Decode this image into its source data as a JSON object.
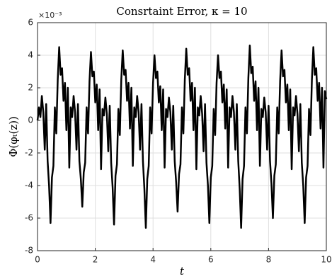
{
  "chart_data": {
    "type": "line",
    "title": "Consrtaint Error, κ = 10",
    "xlabel": "t",
    "ylabel": "Φ(φₜ(z))",
    "y_multiplier": "×10⁻³",
    "color": "#000000",
    "grid": true,
    "xlim": [
      0,
      10
    ],
    "xticks": [
      0,
      2,
      4,
      6,
      8,
      10
    ],
    "ylim": [
      -8,
      6
    ],
    "yticks": [
      -8,
      -6,
      -4,
      -2,
      0,
      2,
      4,
      6
    ],
    "x": [
      0,
      0.05,
      0.1,
      0.15,
      0.2,
      0.25,
      0.3,
      0.35,
      0.4,
      0.45,
      0.5,
      0.55,
      0.6,
      0.65,
      0.7,
      0.75,
      0.8,
      0.85,
      0.9,
      0.95,
      1,
      1.05,
      1.1,
      1.15,
      1.2,
      1.25,
      1.3,
      1.35,
      1.4,
      1.45,
      1.5,
      1.55,
      1.6,
      1.65,
      1.7,
      1.75,
      1.8,
      1.85,
      1.9,
      1.95,
      2,
      2.05,
      2.1,
      2.15,
      2.2,
      2.25,
      2.3,
      2.35,
      2.4,
      2.45,
      2.5,
      2.55,
      2.6,
      2.65,
      2.7,
      2.75,
      2.8,
      2.85,
      2.9,
      2.95,
      3,
      3.05,
      3.1,
      3.15,
      3.2,
      3.25,
      3.3,
      3.35,
      3.4,
      3.45,
      3.5,
      3.55,
      3.6,
      3.65,
      3.7,
      3.75,
      3.8,
      3.85,
      3.9,
      3.95,
      4,
      4.05,
      4.1,
      4.15,
      4.2,
      4.25,
      4.3,
      4.35,
      4.4,
      4.45,
      4.5,
      4.55,
      4.6,
      4.65,
      4.7,
      4.75,
      4.8,
      4.85,
      4.9,
      4.95,
      5,
      5.05,
      5.1,
      5.15,
      5.2,
      5.25,
      5.3,
      5.35,
      5.4,
      5.45,
      5.5,
      5.55,
      5.6,
      5.65,
      5.7,
      5.75,
      5.8,
      5.85,
      5.9,
      5.95,
      6,
      6.05,
      6.1,
      6.15,
      6.2,
      6.25,
      6.3,
      6.35,
      6.4,
      6.45,
      6.5,
      6.55,
      6.6,
      6.65,
      6.7,
      6.75,
      6.8,
      6.85,
      6.9,
      6.95,
      7,
      7.05,
      7.1,
      7.15,
      7.2,
      7.25,
      7.3,
      7.35,
      7.4,
      7.45,
      7.5,
      7.55,
      7.6,
      7.65,
      7.7,
      7.75,
      7.8,
      7.85,
      7.9,
      7.95,
      8,
      8.05,
      8.1,
      8.15,
      8.2,
      8.25,
      8.3,
      8.35,
      8.4,
      8.45,
      8.5,
      8.55,
      8.6,
      8.65,
      8.7,
      8.75,
      8.8,
      8.85,
      8.9,
      8.95,
      9,
      9.05,
      9.1,
      9.15,
      9.2,
      9.25,
      9.3,
      9.35,
      9.4,
      9.45,
      9.5,
      9.55,
      9.6,
      9.65,
      9.7,
      9.75,
      9.8,
      9.85,
      9.9,
      9.95,
      10
    ],
    "values": [
      0,
      0.8,
      0.2,
      1.5,
      0.5,
      -1.8,
      1.0,
      -2.5,
      -4.0,
      -6.3,
      -3.5,
      -2.8,
      0.8,
      -0.8,
      2.5,
      4.5,
      2.8,
      3.2,
      1.2,
      2.3,
      -0.6,
      2.0,
      -2.9,
      0.8,
      0.2,
      1.5,
      0.5,
      -1.8,
      1.0,
      -2.5,
      -3.6,
      -5.3,
      -3.2,
      -2.6,
      0.8,
      -0.8,
      2.4,
      4.2,
      2.7,
      3.0,
      1.1,
      2.2,
      -0.6,
      1.9,
      -3.0,
      0.7,
      0.3,
      1.4,
      0.4,
      -1.9,
      0.9,
      -2.6,
      -4.1,
      -6.4,
      -3.4,
      -2.7,
      0.7,
      -0.9,
      2.5,
      4.3,
      2.8,
      3.1,
      1.2,
      2.3,
      -0.5,
      2.0,
      -2.8,
      0.8,
      0.2,
      1.5,
      0.5,
      -1.8,
      1.0,
      -2.5,
      -4.2,
      -6.6,
      -3.6,
      -2.8,
      0.8,
      -0.8,
      2.3,
      4.0,
      2.6,
      3.0,
      1.1,
      2.1,
      -0.6,
      1.9,
      -2.9,
      0.7,
      0.2,
      1.4,
      0.5,
      -1.8,
      0.9,
      -2.5,
      -3.8,
      -5.6,
      -3.3,
      -2.7,
      0.8,
      -0.8,
      2.5,
      4.4,
      2.8,
      3.2,
      1.2,
      2.3,
      -0.6,
      2.0,
      -3.0,
      0.8,
      0.3,
      1.5,
      0.4,
      -1.9,
      1.0,
      -2.6,
      -4.0,
      -6.3,
      -3.5,
      -2.8,
      0.7,
      -0.9,
      2.3,
      4.0,
      2.6,
      3.0,
      1.1,
      2.2,
      -0.5,
      1.9,
      -2.9,
      0.8,
      0.2,
      1.5,
      0.5,
      -1.8,
      1.0,
      -2.5,
      -4.2,
      -6.6,
      -3.6,
      -2.8,
      0.8,
      -0.8,
      2.6,
      4.6,
      2.9,
      3.3,
      1.2,
      2.4,
      -0.6,
      2.0,
      -2.8,
      0.7,
      0.2,
      1.4,
      0.5,
      -1.8,
      0.9,
      -2.5,
      -3.9,
      -6.0,
      -3.4,
      -2.7,
      0.8,
      -0.8,
      2.4,
      4.3,
      2.7,
      3.1,
      1.1,
      2.2,
      -0.6,
      1.9,
      -3.0,
      0.8,
      0.3,
      1.5,
      0.4,
      -1.9,
      1.0,
      -2.6,
      -4.0,
      -6.3,
      -3.5,
      -2.8,
      0.7,
      -0.9,
      2.5,
      4.5,
      2.8,
      3.2,
      1.2,
      2.3,
      -0.5,
      2.0,
      -2.9,
      1.8,
      1.3
    ]
  }
}
